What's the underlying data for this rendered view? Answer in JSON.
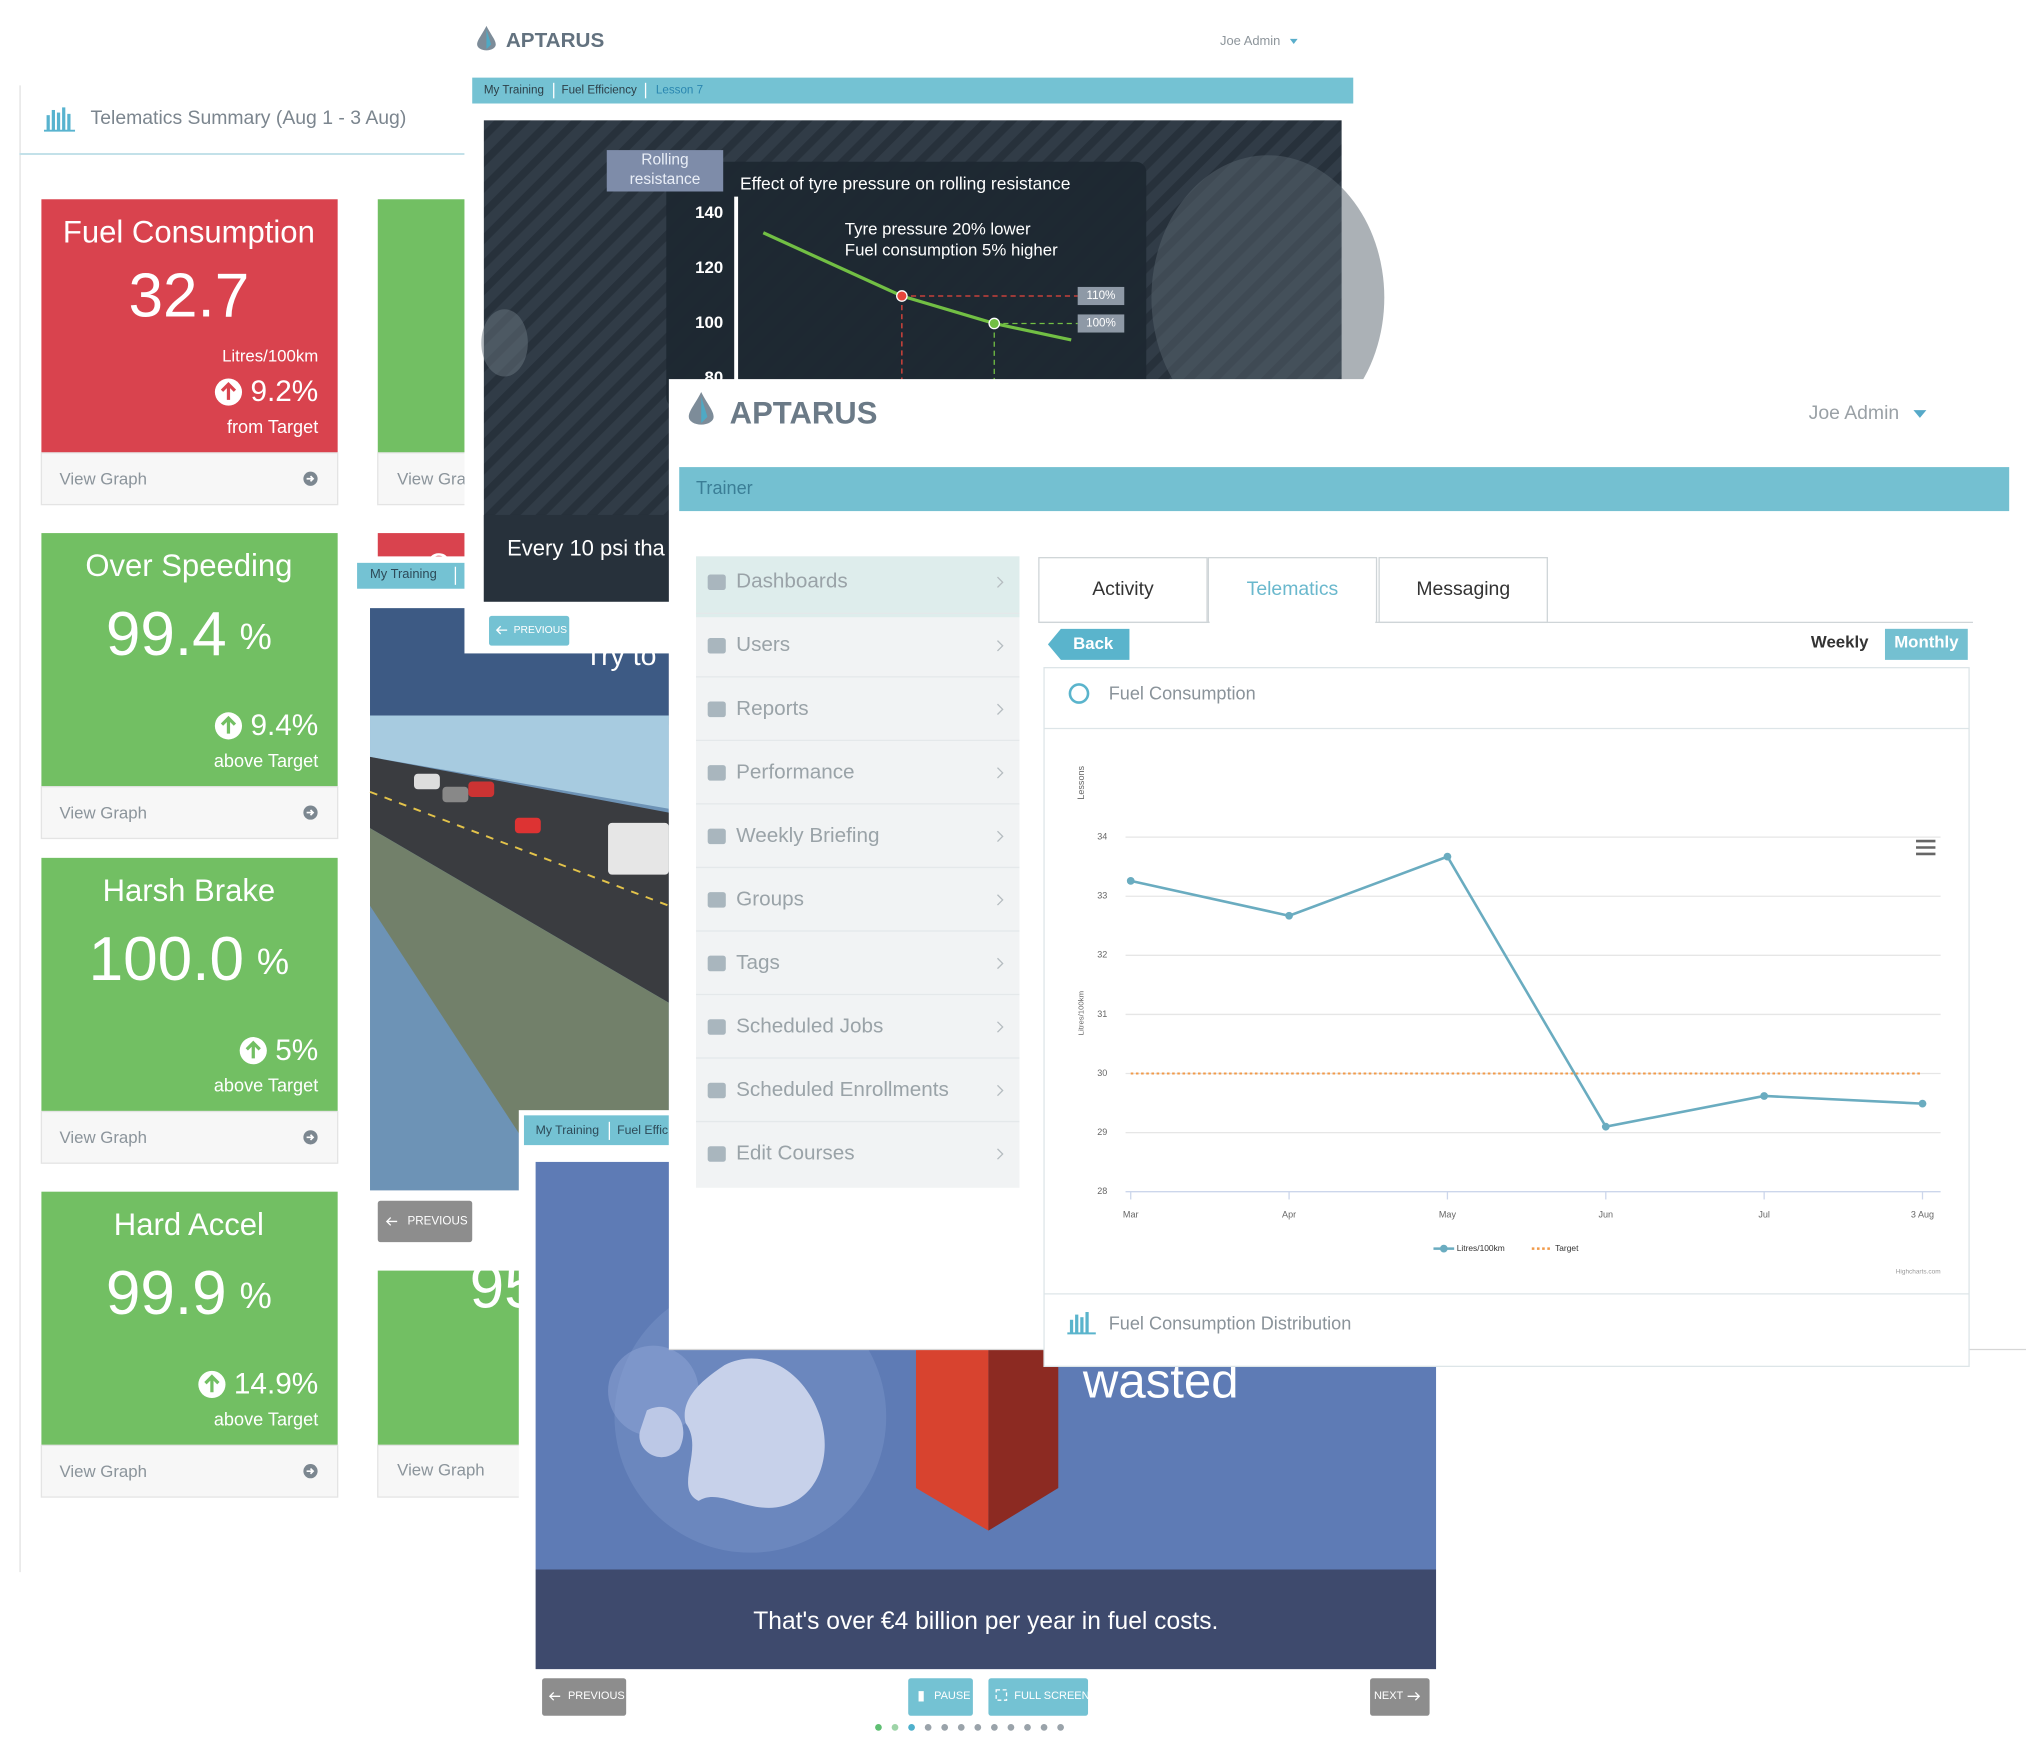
{
  "telematics": {
    "title": "Telematics Summary (Aug 1 - 3 Aug)",
    "cards": [
      {
        "title": "Fuel Consumption",
        "value": "32.7",
        "unit": "Litres/100km",
        "change": "9.2%",
        "note": "from Target",
        "link": "View Graph"
      },
      {
        "title": "Over Speeding",
        "value": "99.4",
        "unit": "%",
        "change": "9.4%",
        "note": "above Target",
        "link": "View Graph"
      },
      {
        "title": "Harsh Brake",
        "value": "100.0",
        "unit": "%",
        "change": "5%",
        "note": "above Target",
        "link": "View Graph"
      },
      {
        "title": "Hard Accel",
        "value": "99.9",
        "unit": "%",
        "change": "14.9%",
        "note": "above Target",
        "link": "View Graph"
      }
    ],
    "partial_cards": [
      {
        "link": "View Gra"
      },
      {
        "title": "C"
      },
      {
        "value": "95",
        "link": "View Graph"
      }
    ]
  },
  "lesson_top": {
    "logo": "APTARUS",
    "user": "Joe Admin",
    "breadcrumb": [
      "My Training",
      "Fuel Efficiency",
      "Lesson 7"
    ],
    "tag": [
      "Rolling",
      "resistance"
    ],
    "caption": "Every 10 psi tha",
    "button": "PREVIOUS"
  },
  "lesson_middle": {
    "breadcrumb": [
      "My Training"
    ],
    "caption": "Try to",
    "button": "PREVIOUS"
  },
  "lesson_bottom": {
    "breadcrumb": [
      "My Training",
      "Fuel Effic"
    ],
    "headline": "wasted",
    "caption": "That's over €4 billion per year in fuel costs.",
    "buttons": {
      "previous": "PREVIOUS",
      "pause": "PAUSE",
      "fullscreen": "FULL SCREEN",
      "next": "NEXT"
    }
  },
  "dashboard": {
    "logo": "APTARUS",
    "user": "Joe Admin",
    "section": "Trainer",
    "menu": [
      "Dashboards",
      "Users",
      "Reports",
      "Performance",
      "Weekly Briefing",
      "Groups",
      "Tags",
      "Scheduled Jobs",
      "Scheduled Enrollments",
      "Edit Courses"
    ],
    "tabs": [
      "Activity",
      "Telematics",
      "Messaging"
    ],
    "back": "Back",
    "periods": [
      "Weekly",
      "Monthly"
    ],
    "panels": [
      "Fuel Consumption",
      "Fuel Consumption Distribution"
    ]
  },
  "chart_data": [
    {
      "type": "line",
      "title": "Effect of tyre pressure on rolling resistance",
      "annotations": [
        "Tyre pressure 20% lower",
        "Fuel consumption 5% higher"
      ],
      "x": [
        0,
        45,
        75,
        100
      ],
      "xlim": [
        0,
        100
      ],
      "series": [
        {
          "color": "#72bf44",
          "values": [
            133,
            110,
            100,
            94
          ],
          "value_labels": [
            null,
            "110%",
            "100%",
            null
          ],
          "marker_colors": [
            null,
            "#e8463c",
            "#72bf44",
            null
          ]
        }
      ],
      "ylim": [
        80,
        145
      ],
      "yticks": [
        80,
        100,
        120,
        140
      ]
    },
    {
      "type": "line",
      "y_title": "Litres/100km",
      "top_label": "Lessons",
      "credit": "Highcharts.com",
      "categories": [
        "Mar",
        "Apr",
        "May",
        "Jun",
        "Jul",
        "3 Aug"
      ],
      "series": [
        {
          "name": "Litres/100km",
          "color": "#6aacc0",
          "values": [
            33.26,
            32.67,
            33.67,
            29.1,
            29.62,
            29.49
          ]
        },
        {
          "name": "Target",
          "color": "#f19a4a",
          "dashed": true,
          "values": [
            30,
            30,
            30,
            30,
            30,
            30
          ]
        }
      ],
      "ylim": [
        28,
        34
      ],
      "yticks": [
        28,
        29,
        30,
        31,
        32,
        33,
        34
      ],
      "grid": true
    }
  ]
}
